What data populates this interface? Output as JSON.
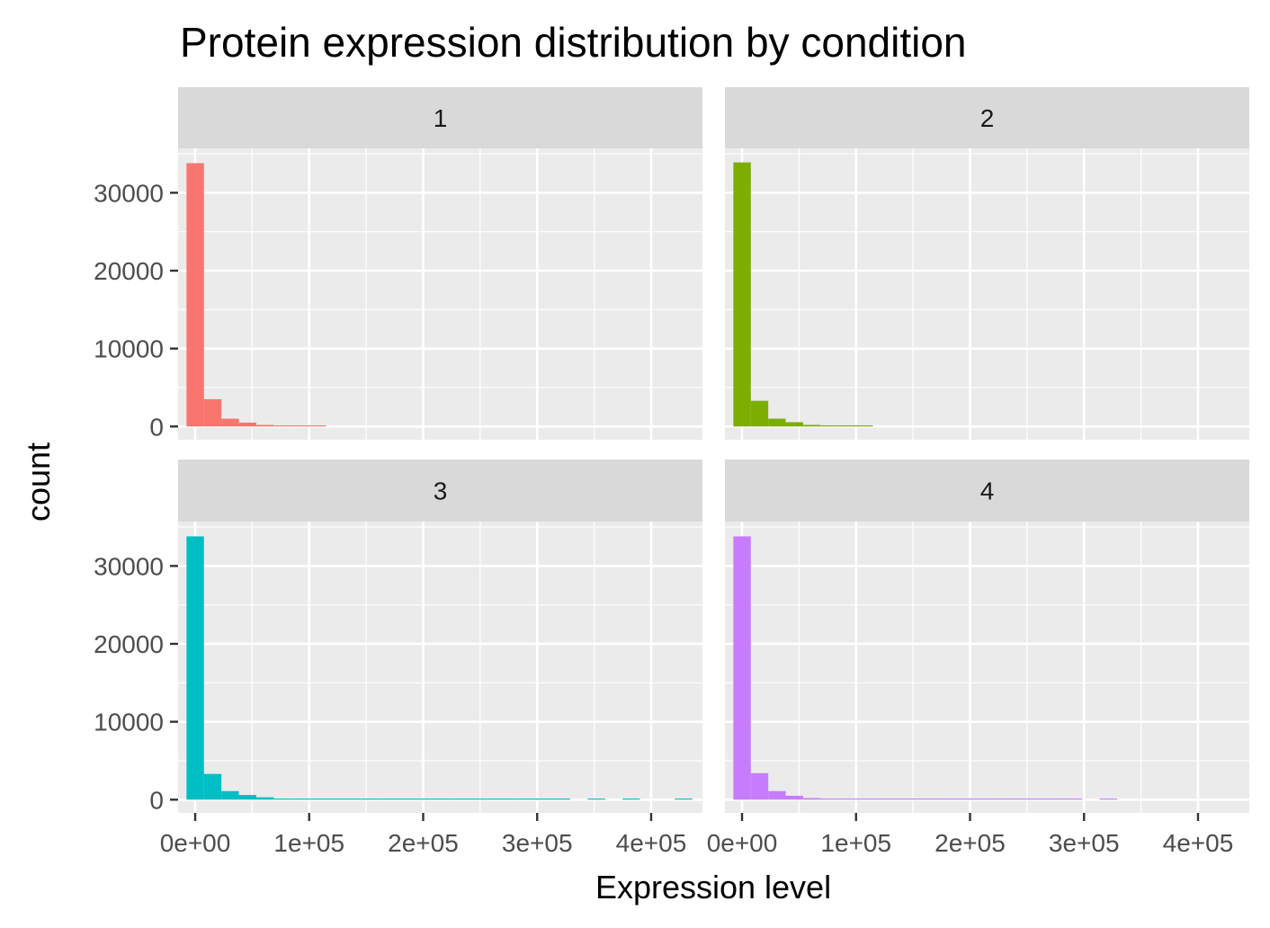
{
  "chart_data": {
    "type": "bar",
    "title": "Protein expression distribution by condition",
    "xlabel": "Expression level",
    "ylabel": "count",
    "facet_layout": "2x2",
    "xlim": [
      -15000,
      445000
    ],
    "ylim": [
      -1700,
      35700
    ],
    "x_ticks": [
      0,
      100000,
      200000,
      300000,
      400000
    ],
    "x_tick_labels": [
      "0e+00",
      "1e+05",
      "2e+05",
      "3e+05",
      "4e+05"
    ],
    "y_ticks": [
      0,
      10000,
      20000,
      30000
    ],
    "y_tick_labels": [
      "0",
      "10000",
      "20000",
      "30000"
    ],
    "bin_width": 15300,
    "grid": true,
    "legend": "none",
    "panel_background": "#ebebeb",
    "strip_background": "#d9d9d9",
    "panels": [
      {
        "label": "1",
        "color": "#f8766d",
        "bins": [
          {
            "x0": -7600,
            "x1": 7700,
            "count": 33800
          },
          {
            "x0": 7700,
            "x1": 23000,
            "count": 3500
          },
          {
            "x0": 23000,
            "x1": 38300,
            "count": 1000
          },
          {
            "x0": 38300,
            "x1": 53600,
            "count": 500
          },
          {
            "x0": 53600,
            "x1": 68900,
            "count": 200
          },
          {
            "x0": 68900,
            "x1": 84200,
            "count": 100
          },
          {
            "x0": 84200,
            "x1": 99500,
            "count": 60
          },
          {
            "x0": 99500,
            "x1": 114800,
            "count": 30
          }
        ]
      },
      {
        "label": "2",
        "color": "#7cae00",
        "bins": [
          {
            "x0": -7600,
            "x1": 7700,
            "count": 33900
          },
          {
            "x0": 7700,
            "x1": 23000,
            "count": 3300
          },
          {
            "x0": 23000,
            "x1": 38300,
            "count": 1000
          },
          {
            "x0": 38300,
            "x1": 53600,
            "count": 550
          },
          {
            "x0": 53600,
            "x1": 68900,
            "count": 200
          },
          {
            "x0": 68900,
            "x1": 84200,
            "count": 100
          },
          {
            "x0": 84200,
            "x1": 99500,
            "count": 60
          },
          {
            "x0": 99500,
            "x1": 114800,
            "count": 30
          }
        ]
      },
      {
        "label": "3",
        "color": "#00bfc4",
        "bins": [
          {
            "x0": -7600,
            "x1": 7700,
            "count": 33800
          },
          {
            "x0": 7700,
            "x1": 23000,
            "count": 3300
          },
          {
            "x0": 23000,
            "x1": 38300,
            "count": 1100
          },
          {
            "x0": 38300,
            "x1": 53600,
            "count": 600
          },
          {
            "x0": 53600,
            "x1": 68900,
            "count": 300
          },
          {
            "x0": 68900,
            "x1": 84200,
            "count": 100
          },
          {
            "x0": 84200,
            "x1": 99500,
            "count": 80
          },
          {
            "x0": 99500,
            "x1": 114800,
            "count": 70
          },
          {
            "x0": 114800,
            "x1": 130100,
            "count": 60
          },
          {
            "x0": 130100,
            "x1": 145400,
            "count": 50
          },
          {
            "x0": 145400,
            "x1": 160700,
            "count": 50
          },
          {
            "x0": 160700,
            "x1": 176000,
            "count": 40
          },
          {
            "x0": 176000,
            "x1": 191300,
            "count": 40
          },
          {
            "x0": 191300,
            "x1": 206600,
            "count": 30
          },
          {
            "x0": 206600,
            "x1": 221900,
            "count": 30
          },
          {
            "x0": 221900,
            "x1": 237200,
            "count": 30
          },
          {
            "x0": 237200,
            "x1": 252500,
            "count": 25
          },
          {
            "x0": 252500,
            "x1": 267800,
            "count": 25
          },
          {
            "x0": 267800,
            "x1": 283100,
            "count": 20
          },
          {
            "x0": 283100,
            "x1": 298400,
            "count": 20
          },
          {
            "x0": 298400,
            "x1": 313700,
            "count": 15
          },
          {
            "x0": 313700,
            "x1": 329000,
            "count": 15
          },
          {
            "x0": 344300,
            "x1": 359600,
            "count": 10
          },
          {
            "x0": 374900,
            "x1": 390200,
            "count": 10
          },
          {
            "x0": 420800,
            "x1": 436100,
            "count": 10
          }
        ]
      },
      {
        "label": "4",
        "color": "#c77cff",
        "bins": [
          {
            "x0": -7600,
            "x1": 7700,
            "count": 33800
          },
          {
            "x0": 7700,
            "x1": 23000,
            "count": 3400
          },
          {
            "x0": 23000,
            "x1": 38300,
            "count": 1100
          },
          {
            "x0": 38300,
            "x1": 53600,
            "count": 500
          },
          {
            "x0": 53600,
            "x1": 68900,
            "count": 200
          },
          {
            "x0": 68900,
            "x1": 84200,
            "count": 100
          },
          {
            "x0": 84200,
            "x1": 99500,
            "count": 70
          },
          {
            "x0": 99500,
            "x1": 114800,
            "count": 60
          },
          {
            "x0": 114800,
            "x1": 130100,
            "count": 50
          },
          {
            "x0": 130100,
            "x1": 145400,
            "count": 40
          },
          {
            "x0": 145400,
            "x1": 160700,
            "count": 40
          },
          {
            "x0": 160700,
            "x1": 176000,
            "count": 30
          },
          {
            "x0": 176000,
            "x1": 191300,
            "count": 30
          },
          {
            "x0": 191300,
            "x1": 206600,
            "count": 25
          },
          {
            "x0": 206600,
            "x1": 221900,
            "count": 25
          },
          {
            "x0": 221900,
            "x1": 237200,
            "count": 20
          },
          {
            "x0": 237200,
            "x1": 252500,
            "count": 20
          },
          {
            "x0": 252500,
            "x1": 267800,
            "count": 15
          },
          {
            "x0": 267800,
            "x1": 283100,
            "count": 15
          },
          {
            "x0": 283100,
            "x1": 298400,
            "count": 10
          },
          {
            "x0": 313700,
            "x1": 329000,
            "count": 10
          }
        ]
      }
    ]
  }
}
